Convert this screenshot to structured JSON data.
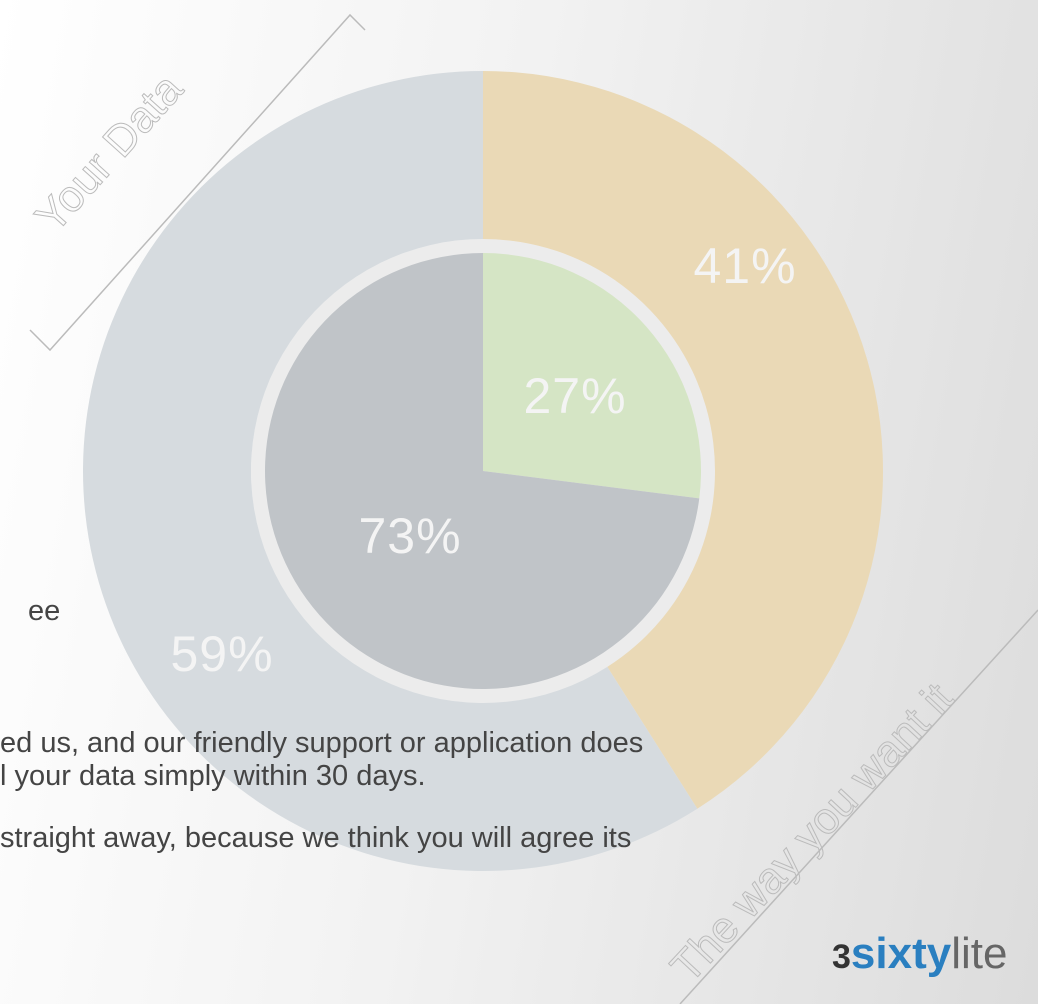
{
  "chart_data": [
    {
      "type": "donut",
      "values": [
        41,
        59
      ],
      "value_labels": [
        "41%",
        "59%"
      ],
      "colors": [
        "#ead9b6",
        "#d6dbdf"
      ]
    },
    {
      "type": "pie",
      "values": [
        27,
        73
      ],
      "value_labels": [
        "27%",
        "73%"
      ],
      "colors": [
        "#d5e5c5",
        "#c0c4c8"
      ]
    }
  ],
  "decor": {
    "top_left": "Your Data",
    "bottom_right": "The way you want it"
  },
  "body": [
    "ee",
    "ed us, and our friendly support or application does",
    "l your data simply within 30 days.",
    "straight away, because we think you will agree its"
  ],
  "logo": {
    "number": "3",
    "middle": "sixty",
    "end": "lite"
  }
}
